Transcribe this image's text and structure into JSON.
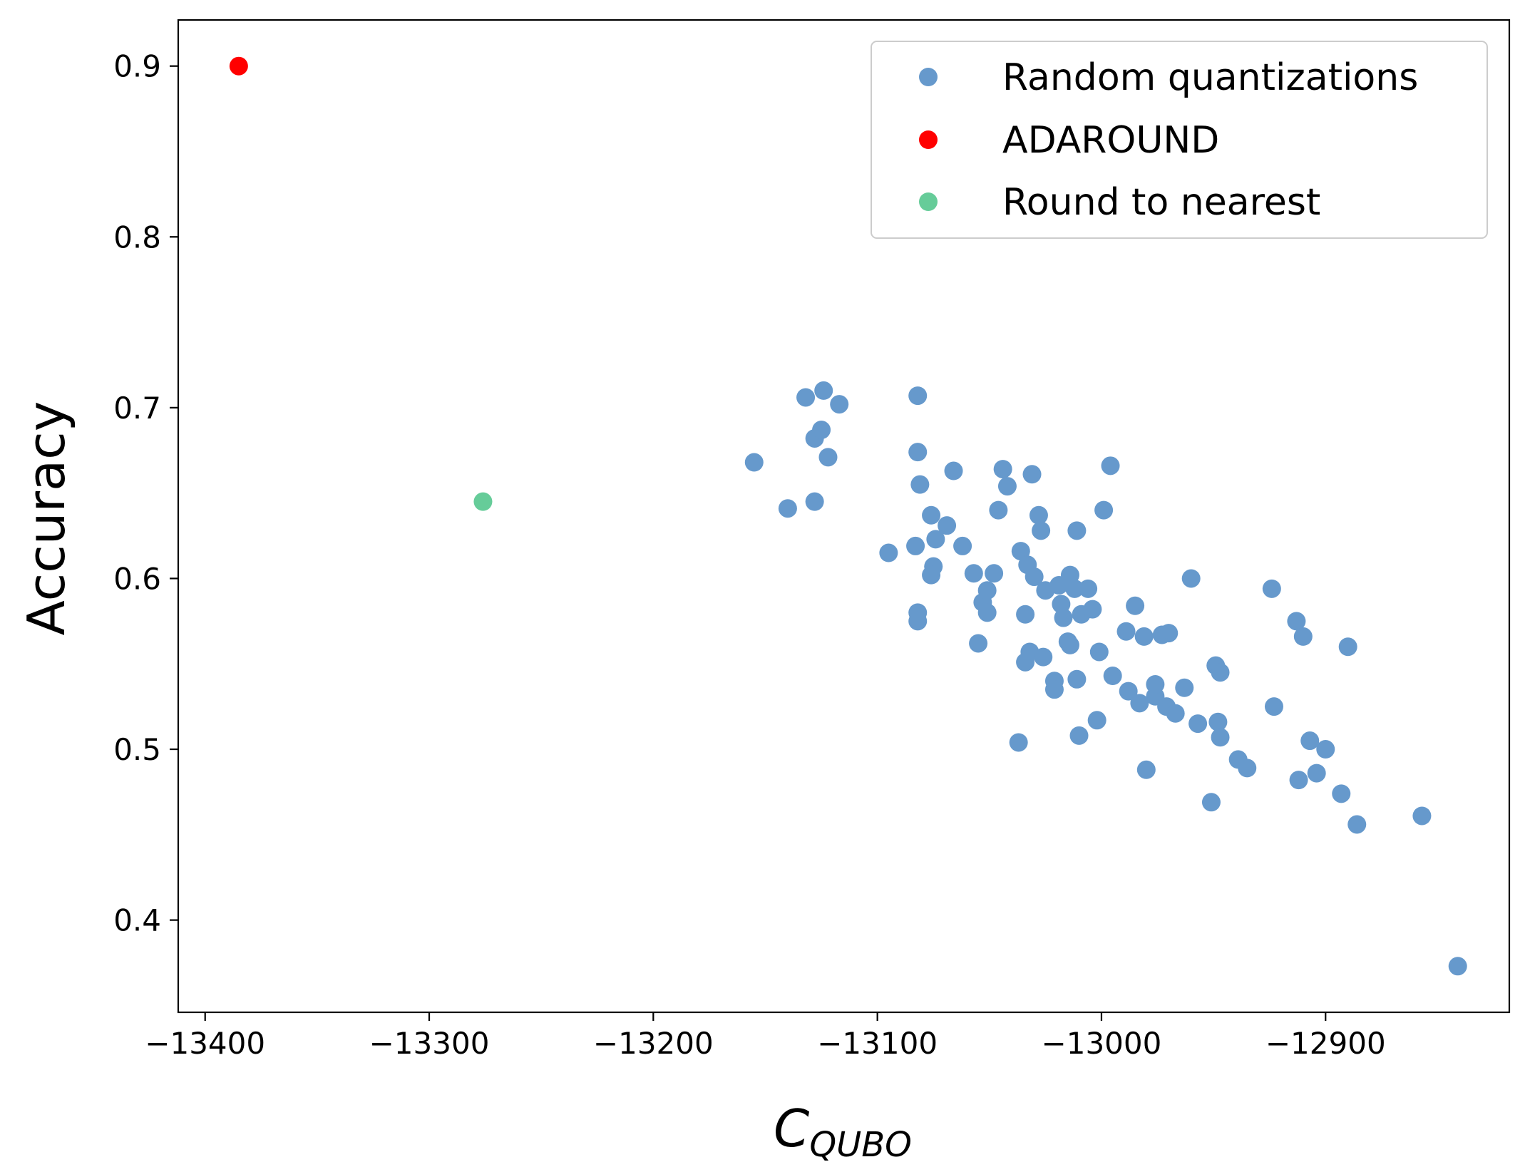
{
  "chart_data": {
    "type": "scatter",
    "xlabel": "C",
    "xlabel_subscript": "QUBO",
    "ylabel": "Accuracy",
    "xlim": [
      -13412,
      -12818
    ],
    "ylim": [
      0.346,
      0.927
    ],
    "xticks": [
      -13400,
      -13300,
      -13200,
      -13100,
      -13000,
      -12900
    ],
    "xtick_labels": [
      "−13400",
      "−13300",
      "−13200",
      "−13100",
      "−13000",
      "−12900"
    ],
    "yticks": [
      0.4,
      0.5,
      0.6,
      0.7,
      0.8,
      0.9
    ],
    "ytick_labels": [
      "0.4",
      "0.5",
      "0.6",
      "0.7",
      "0.8",
      "0.9"
    ],
    "grid": false,
    "legend_position": "top-right",
    "series": [
      {
        "name": "Random quantizations",
        "color": "#6699cc",
        "points": [
          [
            -13155,
            0.668
          ],
          [
            -13140,
            0.641
          ],
          [
            -13132,
            0.706
          ],
          [
            -13128,
            0.682
          ],
          [
            -13128,
            0.645
          ],
          [
            -13125,
            0.687
          ],
          [
            -13124,
            0.71
          ],
          [
            -13122,
            0.671
          ],
          [
            -13117,
            0.702
          ],
          [
            -13095,
            0.615
          ],
          [
            -13082,
            0.707
          ],
          [
            -13082,
            0.674
          ],
          [
            -13083,
            0.619
          ],
          [
            -13081,
            0.655
          ],
          [
            -13082,
            0.58
          ],
          [
            -13082,
            0.575
          ],
          [
            -13076,
            0.637
          ],
          [
            -13074,
            0.623
          ],
          [
            -13075,
            0.607
          ],
          [
            -13076,
            0.602
          ],
          [
            -13069,
            0.631
          ],
          [
            -13066,
            0.663
          ],
          [
            -13062,
            0.619
          ],
          [
            -13057,
            0.603
          ],
          [
            -13055,
            0.562
          ],
          [
            -13053,
            0.586
          ],
          [
            -13051,
            0.58
          ],
          [
            -13051,
            0.593
          ],
          [
            -13048,
            0.603
          ],
          [
            -13046,
            0.64
          ],
          [
            -13044,
            0.664
          ],
          [
            -13042,
            0.654
          ],
          [
            -13037,
            0.504
          ],
          [
            -13036,
            0.616
          ],
          [
            -13033,
            0.608
          ],
          [
            -13034,
            0.579
          ],
          [
            -13034,
            0.551
          ],
          [
            -13032,
            0.557
          ],
          [
            -13031,
            0.661
          ],
          [
            -13030,
            0.601
          ],
          [
            -13028,
            0.637
          ],
          [
            -13027,
            0.628
          ],
          [
            -13026,
            0.554
          ],
          [
            -13025,
            0.593
          ],
          [
            -13021,
            0.54
          ],
          [
            -13021,
            0.535
          ],
          [
            -13019,
            0.596
          ],
          [
            -13018,
            0.585
          ],
          [
            -13017,
            0.577
          ],
          [
            -13014,
            0.602
          ],
          [
            -13015,
            0.563
          ],
          [
            -13014,
            0.561
          ],
          [
            -13012,
            0.594
          ],
          [
            -13011,
            0.541
          ],
          [
            -13011,
            0.628
          ],
          [
            -13010,
            0.508
          ],
          [
            -13009,
            0.579
          ],
          [
            -13006,
            0.594
          ],
          [
            -13004,
            0.582
          ],
          [
            -13002,
            0.517
          ],
          [
            -13001,
            0.557
          ],
          [
            -12999,
            0.64
          ],
          [
            -12996,
            0.666
          ],
          [
            -12995,
            0.543
          ],
          [
            -12989,
            0.569
          ],
          [
            -12988,
            0.534
          ],
          [
            -12985,
            0.584
          ],
          [
            -12983,
            0.527
          ],
          [
            -12981,
            0.566
          ],
          [
            -12980,
            0.488
          ],
          [
            -12976,
            0.531
          ],
          [
            -12976,
            0.538
          ],
          [
            -12973,
            0.567
          ],
          [
            -12971,
            0.525
          ],
          [
            -12970,
            0.568
          ],
          [
            -12967,
            0.521
          ],
          [
            -12963,
            0.536
          ],
          [
            -12960,
            0.6
          ],
          [
            -12957,
            0.515
          ],
          [
            -12951,
            0.469
          ],
          [
            -12949,
            0.549
          ],
          [
            -12948,
            0.516
          ],
          [
            -12947,
            0.545
          ],
          [
            -12947,
            0.507
          ],
          [
            -12939,
            0.494
          ],
          [
            -12935,
            0.489
          ],
          [
            -12924,
            0.594
          ],
          [
            -12923,
            0.525
          ],
          [
            -12913,
            0.575
          ],
          [
            -12912,
            0.482
          ],
          [
            -12910,
            0.566
          ],
          [
            -12907,
            0.505
          ],
          [
            -12904,
            0.486
          ],
          [
            -12900,
            0.5
          ],
          [
            -12893,
            0.474
          ],
          [
            -12890,
            0.56
          ],
          [
            -12886,
            0.456
          ],
          [
            -12857,
            0.461
          ],
          [
            -12841,
            0.373
          ]
        ]
      },
      {
        "name": "ADAROUND",
        "color": "#ff0000",
        "points": [
          [
            -13385,
            0.9
          ]
        ]
      },
      {
        "name": "Round to nearest",
        "color": "#66cc99",
        "points": [
          [
            -13276,
            0.645
          ]
        ]
      }
    ]
  }
}
